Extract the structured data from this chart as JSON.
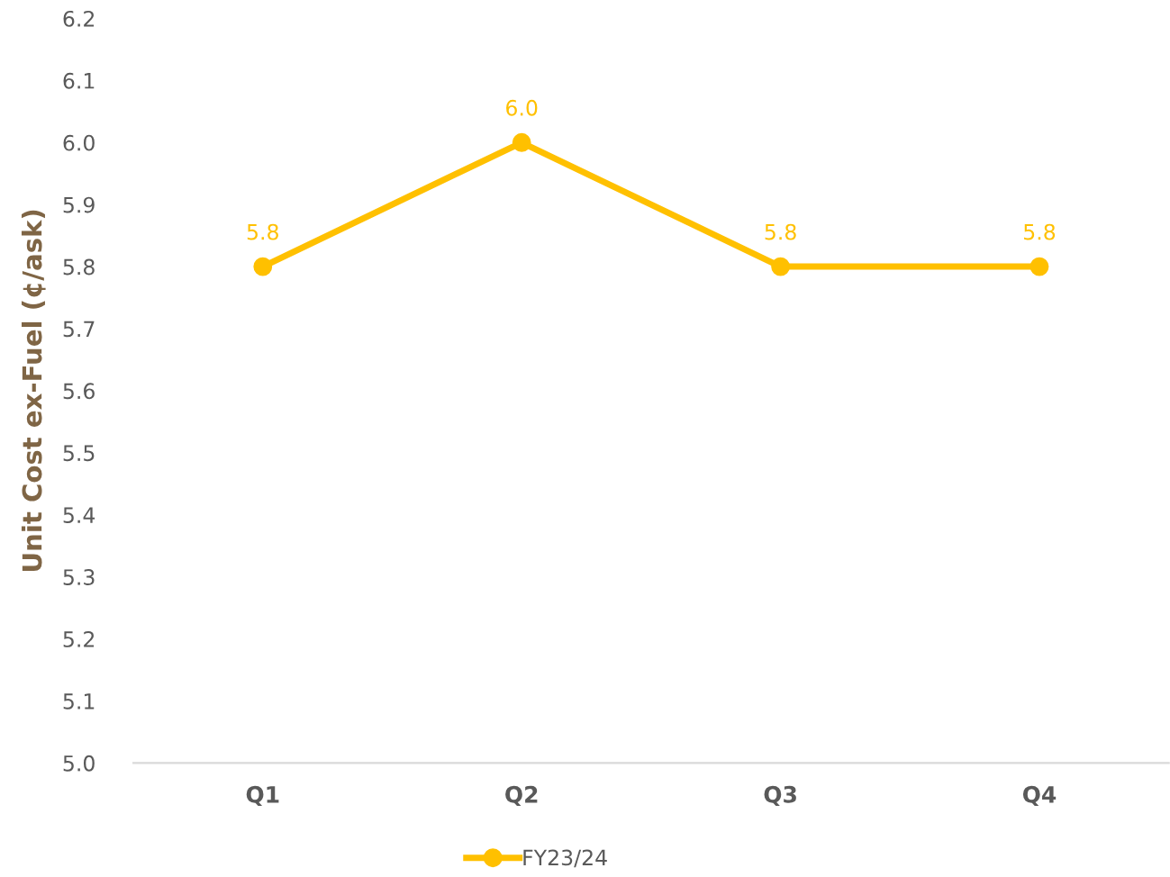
{
  "chart_data": {
    "type": "line",
    "ylabel": "Unit Cost ex-Fuel (¢/ask)",
    "categories": [
      "Q1",
      "Q2",
      "Q3",
      "Q4"
    ],
    "series": [
      {
        "name": "FY23/24",
        "color": "#ffc000",
        "values": [
          5.8,
          6.0,
          5.8,
          5.8
        ],
        "value_labels": [
          "5.8",
          "6.0",
          "5.8",
          "5.8"
        ]
      }
    ],
    "ylim": [
      5.0,
      6.2
    ],
    "yticks": [
      {
        "value": 5,
        "label": "5.0"
      },
      5.1,
      5.2,
      5.3,
      5.4,
      5.5,
      5.6,
      5.7,
      5.8,
      5.9,
      {
        "value": 6,
        "label": "6.0"
      },
      6.1,
      6.2
    ],
    "grid": false,
    "legend": "bottom",
    "marker": "circle",
    "line_style": "solid"
  }
}
